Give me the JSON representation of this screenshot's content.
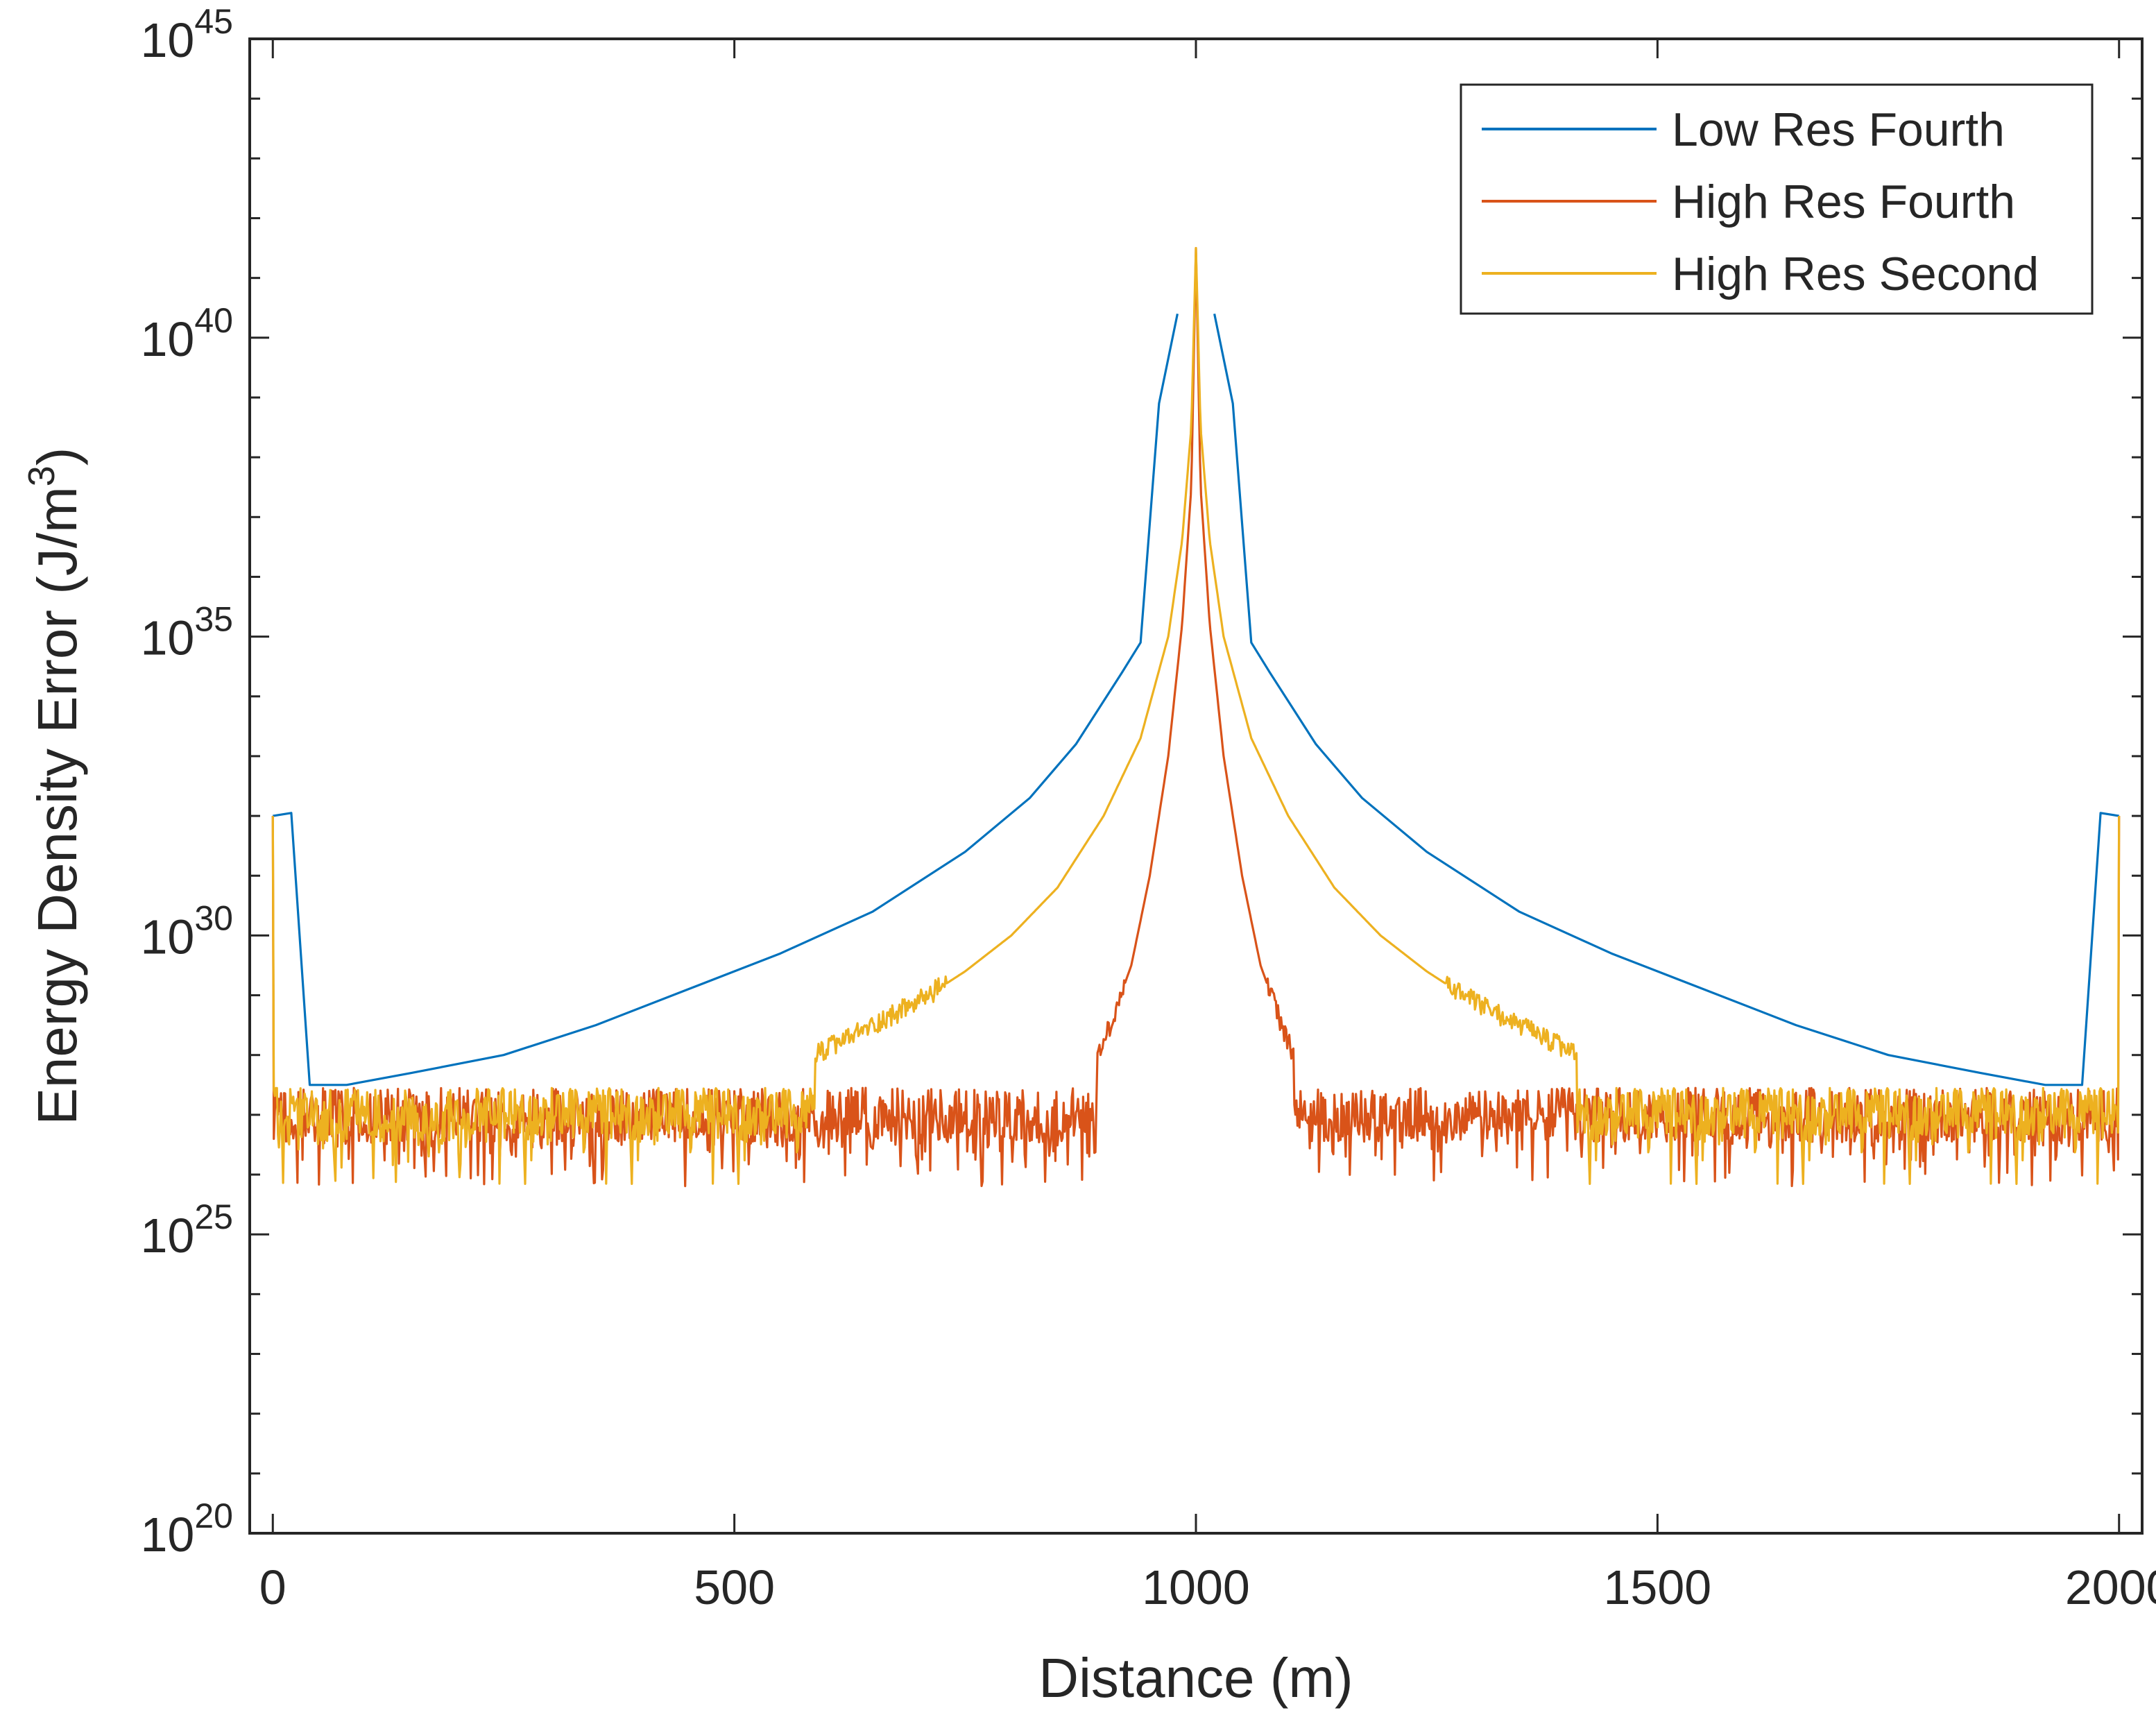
{
  "chart_data": {
    "type": "line",
    "title": "",
    "xlabel": "Distance (m)",
    "ylabel": "Energy Density Error (J/m",
    "ylabel_sup": "3",
    "ylabel_close": ")",
    "xlim": [
      -25,
      2025
    ],
    "ylim_exponents": [
      20,
      45
    ],
    "y_scale": "log",
    "grid": false,
    "legend_position": "top-right",
    "x_ticks": [
      0,
      500,
      1000,
      1500,
      2000
    ],
    "x_tick_labels": [
      "0",
      "500",
      "1000",
      "1500",
      "2000"
    ],
    "y_ticks": [
      {
        "base": "10",
        "exp": "20",
        "value": 20
      },
      {
        "base": "10",
        "exp": "25",
        "value": 25
      },
      {
        "base": "10",
        "exp": "30",
        "value": 30
      },
      {
        "base": "10",
        "exp": "35",
        "value": 35
      },
      {
        "base": "10",
        "exp": "40",
        "value": 40
      },
      {
        "base": "10",
        "exp": "45",
        "value": 45
      }
    ],
    "y_minor_ticks": [
      21,
      22,
      23,
      24,
      26,
      27,
      28,
      29,
      31,
      32,
      33,
      34,
      36,
      37,
      38,
      39,
      41,
      42,
      43,
      44
    ],
    "series": [
      {
        "name": "Low Res Fourth",
        "color": "#0072BD",
        "style": "smooth",
        "x": [
          0,
          20,
          40,
          80,
          150,
          250,
          350,
          450,
          550,
          650,
          750,
          820,
          870,
          920,
          940,
          960,
          980,
          1020,
          1040,
          1060,
          1080,
          1130,
          1180,
          1250,
          1350,
          1450,
          1550,
          1650,
          1750,
          1850,
          1920,
          1960,
          1980,
          2000
        ],
        "log10_y": [
          32.0,
          32.05,
          27.5,
          27.5,
          27.7,
          28.0,
          28.5,
          29.1,
          29.7,
          30.4,
          31.4,
          32.3,
          33.2,
          34.4,
          34.9,
          38.9,
          40.4,
          40.4,
          38.9,
          34.9,
          34.4,
          33.2,
          32.3,
          31.4,
          30.4,
          29.7,
          29.1,
          28.5,
          28.0,
          27.7,
          27.5,
          27.5,
          32.05,
          32.0
        ]
      },
      {
        "name": "High Res Fourth",
        "color": "#D95319",
        "style": "noisy",
        "x": [
          0,
          1,
          4,
          14,
          20,
          30,
          60,
          100,
          200,
          300,
          400,
          500,
          600,
          700,
          800,
          850,
          870,
          900,
          930,
          950,
          970,
          985,
          995,
          1000,
          1005,
          1015,
          1030,
          1050,
          1070,
          1100,
          1130,
          1150,
          1200,
          1300,
          1400,
          1500,
          1600,
          1700,
          1800,
          1900,
          1940,
          1980,
          1986,
          1996,
          1999,
          2000
        ],
        "log10_y": [
          32.0,
          27.0,
          27.0,
          27.0,
          27.0,
          27.0,
          27.0,
          27.0,
          27.0,
          27.0,
          27.0,
          27.0,
          27.0,
          27.0,
          27.0,
          27.0,
          27.3,
          28.2,
          29.5,
          31.0,
          33.0,
          35.2,
          37.5,
          41.5,
          37.5,
          35.2,
          33.0,
          31.0,
          29.5,
          28.2,
          27.3,
          27.0,
          27.0,
          27.0,
          27.0,
          27.0,
          27.0,
          27.0,
          27.0,
          27.0,
          27.0,
          27.0,
          27.0,
          27.0,
          27.0,
          32.0
        ]
      },
      {
        "name": "High Res Second",
        "color": "#EDB120",
        "style": "noisy",
        "x": [
          0,
          1,
          3,
          50,
          100,
          200,
          300,
          400,
          450,
          500,
          550,
          600,
          650,
          700,
          750,
          800,
          850,
          900,
          940,
          970,
          985,
          995,
          1000,
          1005,
          1015,
          1030,
          1060,
          1100,
          1150,
          1200,
          1250,
          1300,
          1350,
          1400,
          1450,
          1500,
          1550,
          1600,
          1700,
          1800,
          1900,
          1950,
          1997,
          1999,
          2000
        ],
        "log10_y": [
          32.0,
          27.0,
          27.0,
          27.0,
          27.0,
          27.0,
          27.0,
          27.0,
          27.1,
          27.4,
          27.7,
          28.1,
          28.5,
          28.9,
          29.4,
          30.0,
          30.8,
          32.0,
          33.3,
          35.0,
          36.6,
          38.5,
          41.5,
          38.5,
          36.6,
          35.0,
          33.3,
          32.0,
          30.8,
          30.0,
          29.4,
          28.9,
          28.5,
          28.1,
          27.7,
          27.4,
          27.1,
          27.0,
          27.0,
          27.0,
          27.0,
          27.0,
          27.0,
          27.0,
          32.0
        ]
      }
    ]
  }
}
